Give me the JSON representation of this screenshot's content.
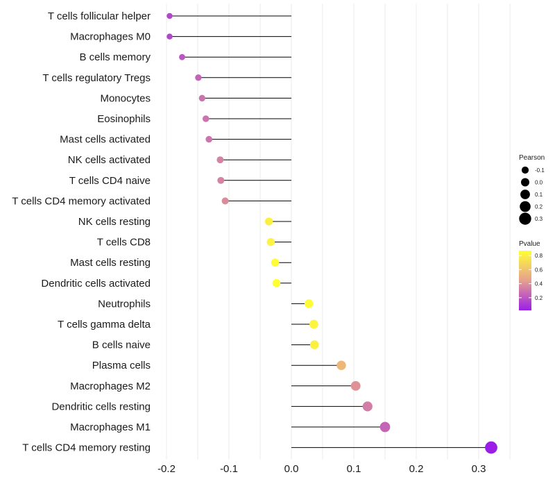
{
  "chart_data": {
    "type": "lollipop",
    "title": "",
    "xlabel": "",
    "ylabel": "",
    "xlim": [
      -0.2,
      0.33
    ],
    "x_ticks": [
      -0.2,
      -0.1,
      0.0,
      0.1,
      0.2,
      0.3
    ],
    "x_tick_labels": [
      "-0.2",
      "-0.1",
      "0.0",
      "0.1",
      "0.2",
      "0.3"
    ],
    "grid": true,
    "series": [
      {
        "name": "T cells follicular helper",
        "pearson": -0.195,
        "pvalue": 0.15
      },
      {
        "name": "Macrophages M0",
        "pearson": -0.195,
        "pvalue": 0.15
      },
      {
        "name": "B cells memory",
        "pearson": -0.175,
        "pvalue": 0.2
      },
      {
        "name": "T cells regulatory  Tregs",
        "pearson": -0.149,
        "pvalue": 0.25
      },
      {
        "name": "Monocytes",
        "pearson": -0.143,
        "pvalue": 0.3
      },
      {
        "name": "Eosinophils",
        "pearson": -0.137,
        "pvalue": 0.3
      },
      {
        "name": "Mast cells activated",
        "pearson": -0.132,
        "pvalue": 0.3
      },
      {
        "name": "NK cells activated",
        "pearson": -0.114,
        "pvalue": 0.35
      },
      {
        "name": "T cells CD4 naive",
        "pearson": -0.113,
        "pvalue": 0.35
      },
      {
        "name": "T cells CD4 memory activated",
        "pearson": -0.106,
        "pvalue": 0.38
      },
      {
        "name": "NK cells resting",
        "pearson": -0.036,
        "pvalue": 0.8
      },
      {
        "name": "T cells CD8",
        "pearson": -0.033,
        "pvalue": 0.82
      },
      {
        "name": "Mast cells resting",
        "pearson": -0.026,
        "pvalue": 0.86
      },
      {
        "name": "Dendritic cells activated",
        "pearson": -0.024,
        "pvalue": 0.87
      },
      {
        "name": "Neutrophils",
        "pearson": 0.028,
        "pvalue": 0.85
      },
      {
        "name": "T cells gamma delta",
        "pearson": 0.036,
        "pvalue": 0.82
      },
      {
        "name": "B cells naive",
        "pearson": 0.037,
        "pvalue": 0.8
      },
      {
        "name": "Plasma cells",
        "pearson": 0.08,
        "pvalue": 0.55
      },
      {
        "name": "Macrophages M2",
        "pearson": 0.103,
        "pvalue": 0.4
      },
      {
        "name": "Dendritic cells resting",
        "pearson": 0.122,
        "pvalue": 0.33
      },
      {
        "name": "Macrophages M1",
        "pearson": 0.15,
        "pvalue": 0.25
      },
      {
        "name": "T cells CD4 memory resting",
        "pearson": 0.32,
        "pvalue": 0.02
      }
    ],
    "legend": {
      "position": "right",
      "size": {
        "title": "Pearson",
        "values": [
          -0.1,
          0.0,
          0.1,
          0.2,
          0.3
        ],
        "labels": [
          "-0.1",
          "0.0",
          "0.1",
          "0.2",
          "0.3"
        ]
      },
      "color": {
        "title": "Pvalue",
        "ticks": [
          0.2,
          0.4,
          0.6,
          0.8
        ],
        "labels": [
          "0.2",
          "0.4",
          "0.6",
          "0.8"
        ],
        "range": [
          0.02,
          0.87
        ],
        "low_color": "#9b1ee8",
        "mid_color": "#e6a08e",
        "high_color": "#ffff33"
      }
    }
  }
}
